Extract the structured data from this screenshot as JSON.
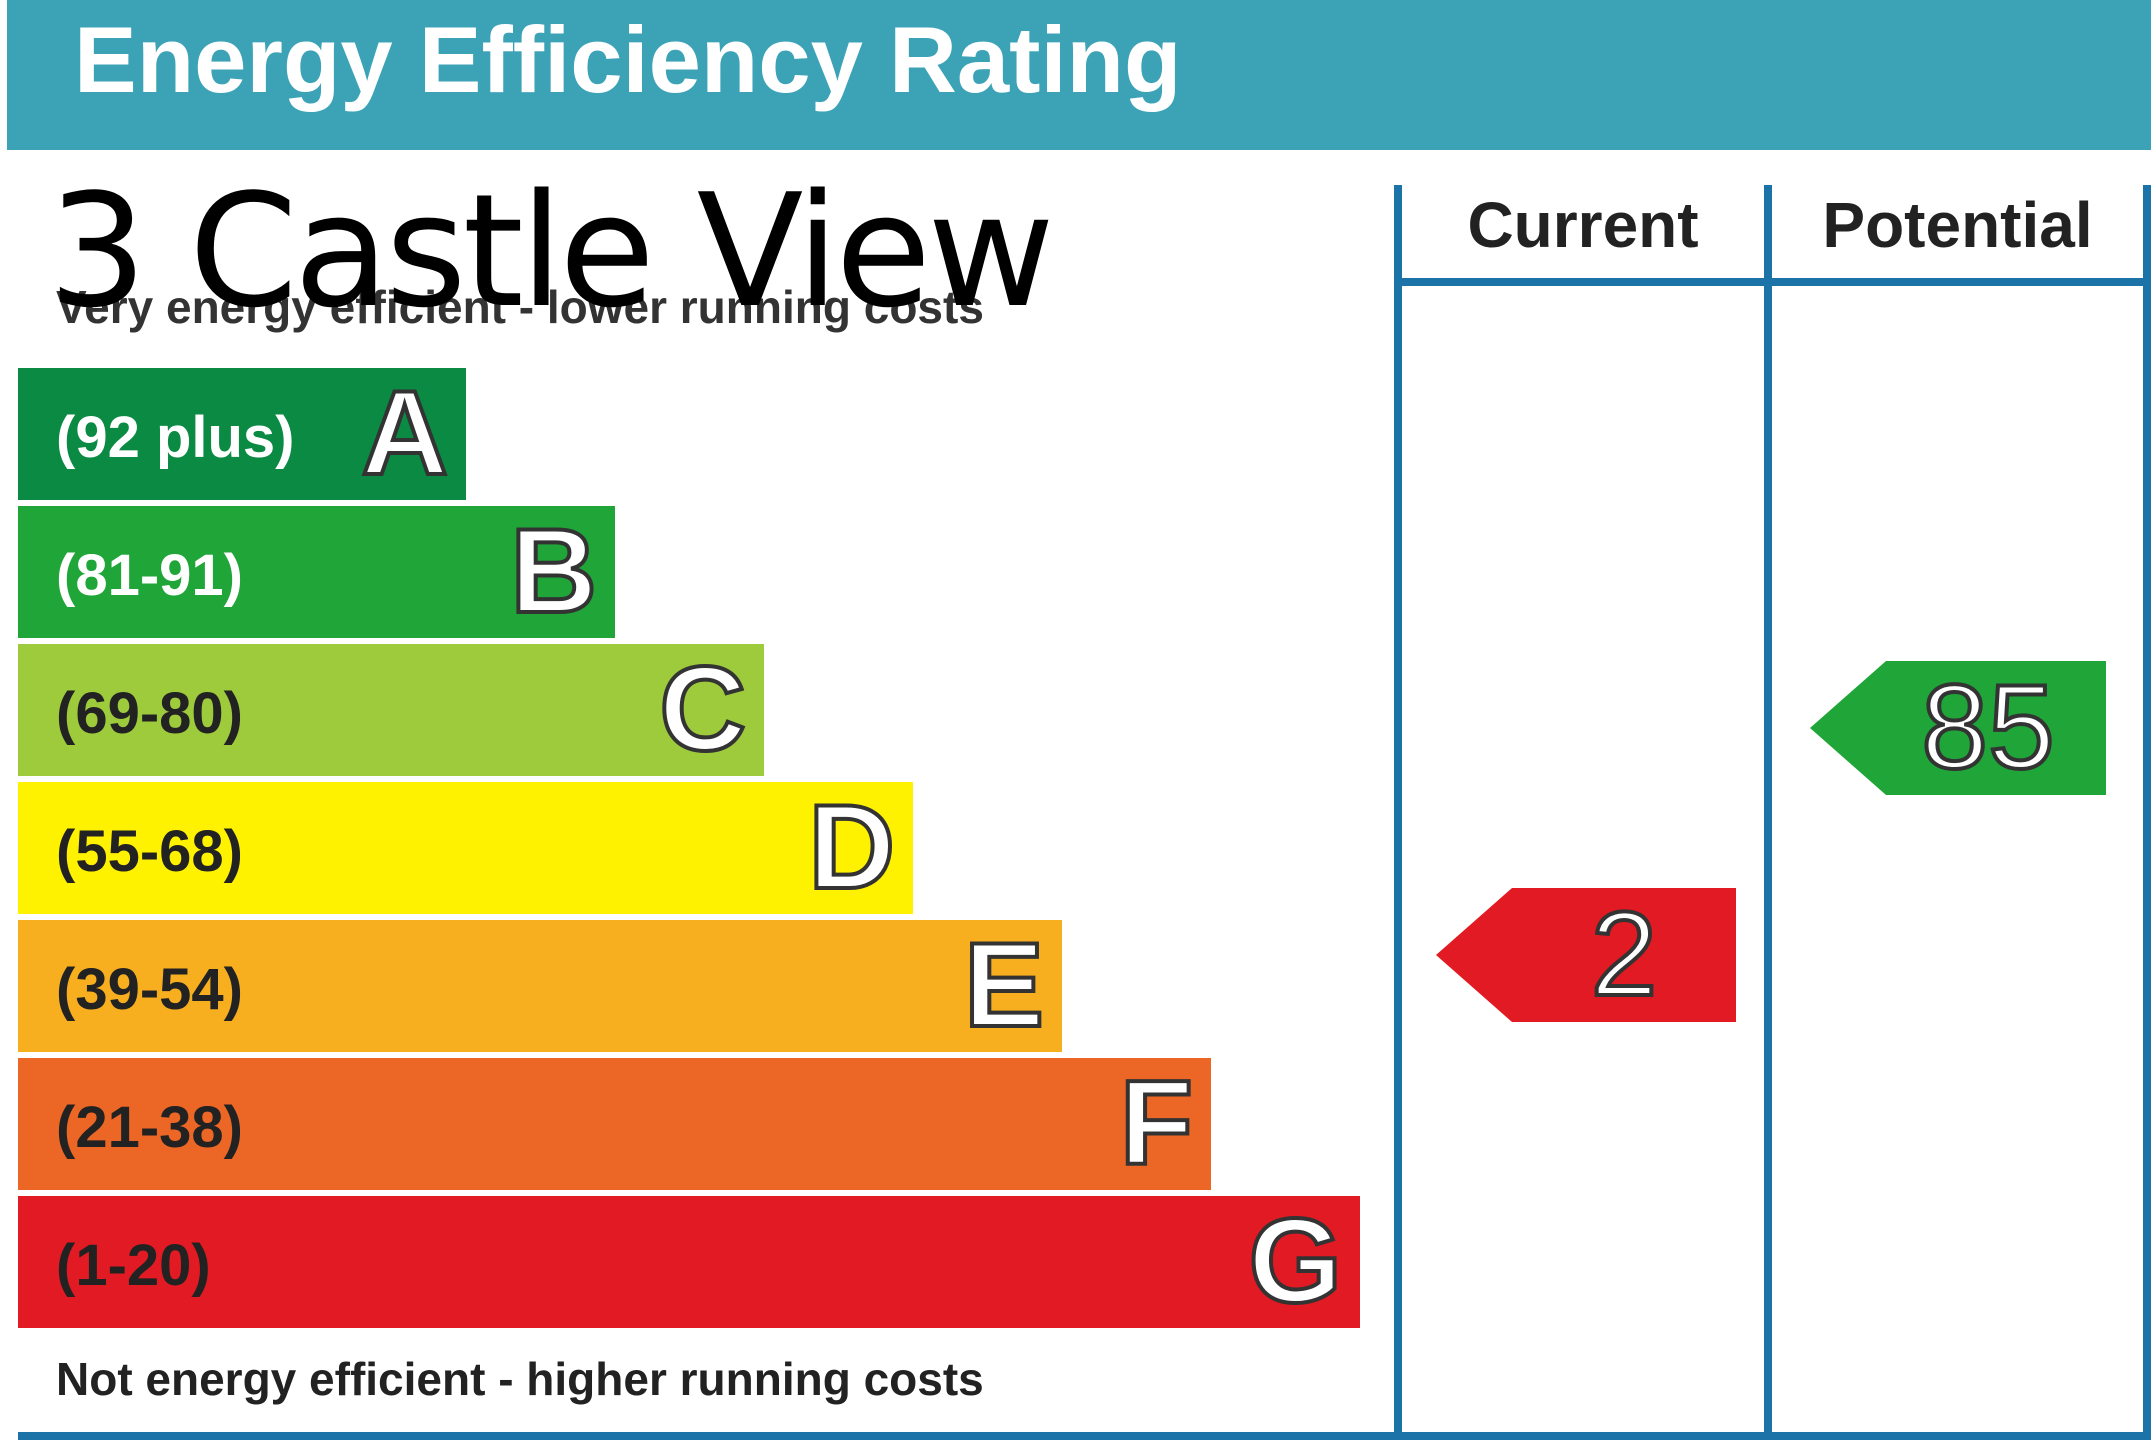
{
  "header": {
    "title": "Energy Efficiency Rating"
  },
  "address": "3 Castle View",
  "captions": {
    "top": "Very energy efficient - lower running costs",
    "bottom": "Not energy efficient - higher running costs"
  },
  "columns": {
    "current": "Current",
    "potential": "Potential"
  },
  "chart_data": {
    "type": "bar",
    "bands": [
      {
        "letter": "A",
        "range": "(92 plus)",
        "color": "#0a8a43",
        "text_color": "#ffffff"
      },
      {
        "letter": "B",
        "range": "(81-91)",
        "color": "#1fa538",
        "text_color": "#ffffff"
      },
      {
        "letter": "C",
        "range": "(69-80)",
        "color": "#9dcb3c",
        "text_color": "#222222"
      },
      {
        "letter": "D",
        "range": "(55-68)",
        "color": "#fff200",
        "text_color": "#222222"
      },
      {
        "letter": "E",
        "range": "(39-54)",
        "color": "#f7ae1f",
        "text_color": "#222222"
      },
      {
        "letter": "F",
        "range": "(21-38)",
        "color": "#ec6726",
        "text_color": "#222222"
      },
      {
        "letter": "G",
        "range": "(1-20)",
        "color": "#e21a23",
        "text_color": "#222222"
      }
    ],
    "current": {
      "value": 2,
      "band": "G",
      "color": "#e21a23"
    },
    "potential": {
      "value": 85,
      "band": "B",
      "color": "#1fa538"
    }
  }
}
